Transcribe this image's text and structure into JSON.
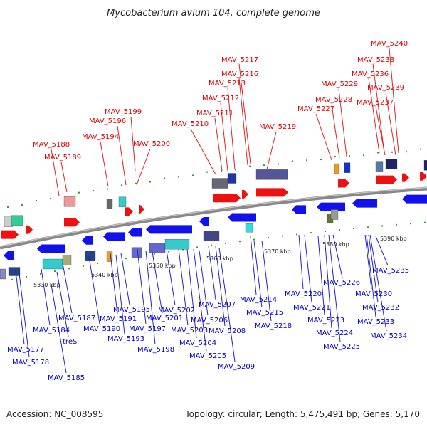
{
  "title": "Mycobacterium avium 104, complete genome",
  "footer": {
    "accession": "Accession: NC_008595",
    "summary": "Topology: circular; Length: 5,475,491 bp; Genes: 5,170"
  },
  "colors": {
    "forward_label": "#dd0000",
    "reverse_label": "#0000cc",
    "forward_gene": "#ee1111",
    "reverse_gene": "#1111ee",
    "backbone": "#888888",
    "tick_dot": "#339933"
  },
  "ticks": [
    "5330 kbp",
    "5340 kbp",
    "5350 kbp",
    "5360 kbp",
    "5370 kbp",
    "5380 kbp",
    "5390 kbp"
  ],
  "forward_labels": [
    "MAV_5240",
    "MAV_5238",
    "MAV_5217",
    "MAV_5236",
    "MAV_5216",
    "MAV_5213",
    "MAV_5229",
    "MAV_5239",
    "MAV_5212",
    "MAV_5228",
    "MAV_5237",
    "MAV_5199",
    "MAV_5227",
    "MAV_5211",
    "MAV_5196",
    "MAV_5210",
    "MAV_5219",
    "MAV_5194",
    "MAV_5188",
    "MAV_5200",
    "MAV_5189"
  ],
  "reverse_labels": [
    "MAV_5235",
    "MAV_5220",
    "MAV_5230",
    "MAV_5214",
    "MAV_5207",
    "MAV_5226",
    "MAV_5221",
    "MAV_5232",
    "MAV_5195",
    "MAV_5202",
    "MAV_5215",
    "MAV_5187",
    "MAV_5191",
    "MAV_5201",
    "MAV_5206",
    "MAV_5223",
    "MAV_5233",
    "MAV_5218",
    "MAV_5190",
    "MAV_5197",
    "MAV_5184",
    "MAV_5203",
    "MAV_5208",
    "MAV_5224",
    "MAV_5234",
    "MAV_5193",
    "treS",
    "MAV_5204",
    "MAV_5225",
    "MAV_5177",
    "MAV_5198",
    "MAV_5205",
    "MAV_5178",
    "MAV_5209",
    "MAV_5185"
  ]
}
